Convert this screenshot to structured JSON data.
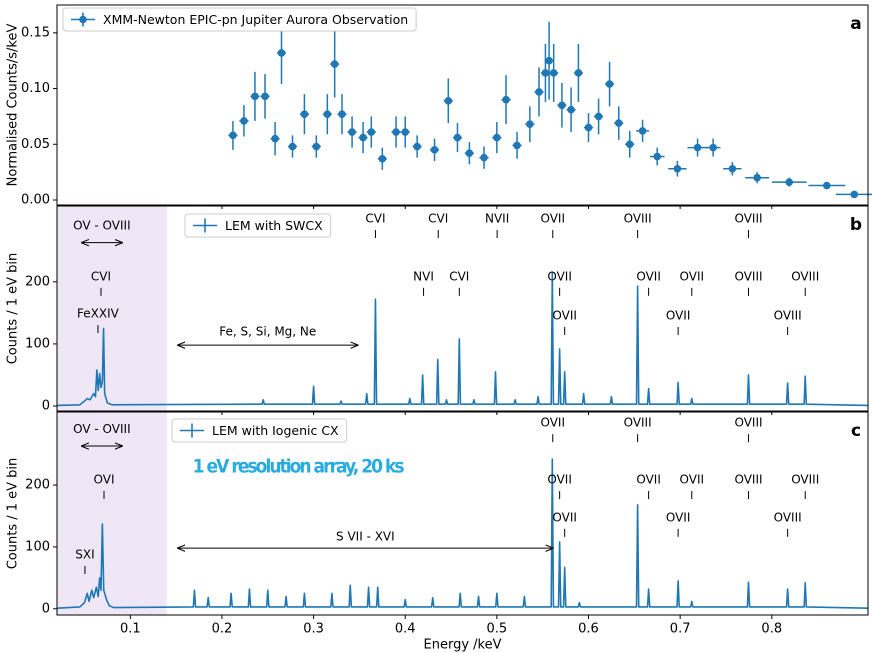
{
  "chart_data": [
    {
      "type": "scatter",
      "label": "a",
      "ylabel": "Normalised Counts/s/keV",
      "xlim": [
        0.02,
        0.905
      ],
      "xticks": [
        0.1,
        0.2,
        0.3,
        0.4,
        0.5,
        0.6,
        0.7,
        0.8
      ],
      "ylim": [
        -0.0045,
        0.175
      ],
      "yticks": [
        {
          "value": 0,
          "label": "0.00"
        },
        0.05,
        {
          "value": 0.1,
          "label": "0.10"
        },
        0.15
      ],
      "x": [
        0.212,
        0.224,
        0.236,
        0.247,
        0.258,
        0.265,
        0.277,
        0.29,
        0.303,
        0.315,
        0.323,
        0.331,
        0.342,
        0.354,
        0.363,
        0.375,
        0.39,
        0.4,
        0.413,
        0.432,
        0.447,
        0.457,
        0.47,
        0.486,
        0.5,
        0.51,
        0.522,
        0.536,
        0.546,
        0.553,
        0.557,
        0.562,
        0.571,
        0.581,
        0.589,
        0.6,
        0.611,
        0.623,
        0.633,
        0.645,
        0.659,
        0.675,
        0.697,
        0.719,
        0.736,
        0.757,
        0.784,
        0.819,
        0.86,
        0.89
      ],
      "series": [
        {
          "name": "XMM-Newton EPIC-pn Jupiter Aurora Observation",
          "color": "#1f77b4",
          "values": [
            0.058,
            0.071,
            0.093,
            0.093,
            0.055,
            0.132,
            0.048,
            0.077,
            0.048,
            0.077,
            0.122,
            0.077,
            0.061,
            0.056,
            0.061,
            0.037,
            0.061,
            0.061,
            0.048,
            0.045,
            0.089,
            0.056,
            0.042,
            0.038,
            0.056,
            0.09,
            0.049,
            0.068,
            0.097,
            0.114,
            0.125,
            0.114,
            0.085,
            0.081,
            0.114,
            0.065,
            0.075,
            0.104,
            0.069,
            0.05,
            0.062,
            0.039,
            0.028,
            0.047,
            0.047,
            0.028,
            0.02,
            0.016,
            0.013,
            0.005
          ],
          "yerr": [
            0.013,
            0.014,
            0.022,
            0.02,
            0.015,
            0.028,
            0.01,
            0.018,
            0.01,
            0.018,
            0.03,
            0.018,
            0.014,
            0.014,
            0.014,
            0.01,
            0.014,
            0.014,
            0.01,
            0.01,
            0.02,
            0.013,
            0.01,
            0.01,
            0.014,
            0.022,
            0.012,
            0.016,
            0.022,
            0.026,
            0.035,
            0.026,
            0.02,
            0.02,
            0.026,
            0.013,
            0.016,
            0.02,
            0.015,
            0.012,
            0.01,
            0.008,
            0.007,
            0.008,
            0.008,
            0.006,
            0.005,
            0.004,
            0.003,
            0
          ],
          "xerr": [
            0.005,
            0.005,
            0.005,
            0.005,
            0.005,
            0.005,
            0.005,
            0.005,
            0.005,
            0.005,
            0.005,
            0.005,
            0.005,
            0.005,
            0.005,
            0.005,
            0.005,
            0.005,
            0.005,
            0.005,
            0.005,
            0.005,
            0.005,
            0.005,
            0.005,
            0.005,
            0.005,
            0.005,
            0.005,
            0.005,
            0.005,
            0.005,
            0.005,
            0.005,
            0.005,
            0.005,
            0.005,
            0.005,
            0.005,
            0.005,
            0.007,
            0.008,
            0.01,
            0.011,
            0.008,
            0.01,
            0.013,
            0.019,
            0.02,
            0.02
          ]
        }
      ]
    },
    {
      "type": "line",
      "label": "b",
      "ylabel": "Counts / 1 eV bin",
      "xlim": [
        0.02,
        0.905
      ],
      "xticks": [
        0.1,
        0.2,
        0.3,
        0.4,
        0.5,
        0.6,
        0.7,
        0.8
      ],
      "ylim": [
        -8,
        322
      ],
      "yticks": [
        0,
        100,
        200
      ],
      "shade": [
        0.02,
        0.14
      ],
      "x": [
        0.02,
        0.045,
        0.05,
        0.053,
        0.056,
        0.06,
        0.062,
        0.0635,
        0.065,
        0.0665,
        0.068,
        0.0695,
        0.0708,
        0.072,
        0.075,
        0.08,
        0.2438,
        0.245,
        0.2462,
        0.2988,
        0.3,
        0.3012,
        0.3288,
        0.33,
        0.3312,
        0.3568,
        0.358,
        0.3592,
        0.3663,
        0.3675,
        0.3687,
        0.4038,
        0.405,
        0.4062,
        0.4178,
        0.419,
        0.4202,
        0.4343,
        0.4355,
        0.4367,
        0.4438,
        0.445,
        0.4462,
        0.4578,
        0.459,
        0.4602,
        0.4738,
        0.475,
        0.4762,
        0.4973,
        0.4985,
        0.4997,
        0.5188,
        0.52,
        0.5212,
        0.5438,
        0.545,
        0.5462,
        0.5593,
        0.5605,
        0.5617,
        0.5673,
        0.5685,
        0.5697,
        0.5728,
        0.574,
        0.5752,
        0.5935,
        0.5947,
        0.5959,
        0.6238,
        0.625,
        0.6262,
        0.6524,
        0.6536,
        0.6548,
        0.6644,
        0.6656,
        0.6668,
        0.6966,
        0.6978,
        0.699,
        0.7115,
        0.7127,
        0.7139,
        0.7734,
        0.7746,
        0.7758,
        0.8161,
        0.8173,
        0.8185,
        0.8353,
        0.8365,
        0.8377,
        0.905
      ],
      "series": [
        {
          "name": "LEM with SWCX",
          "color": "#1f77b4",
          "values": [
            1,
            2,
            8,
            12,
            10,
            20,
            15,
            58,
            25,
            52,
            30,
            40,
            125,
            20,
            5,
            2,
            3,
            10,
            3,
            3,
            32,
            3,
            3,
            8,
            3,
            3,
            20,
            3,
            3,
            172,
            3,
            3,
            12,
            3,
            3,
            50,
            3,
            3,
            75,
            3,
            3,
            10,
            3,
            3,
            108,
            3,
            3,
            10,
            3,
            3,
            55,
            3,
            3,
            10,
            3,
            3,
            15,
            3,
            3,
            215,
            3,
            3,
            92,
            3,
            3,
            55,
            3,
            3,
            20,
            3,
            3,
            15,
            3,
            3,
            193,
            3,
            3,
            28,
            3,
            3,
            38,
            3,
            3,
            12,
            3,
            3,
            50,
            3,
            3,
            37,
            3,
            3,
            48,
            3,
            1
          ]
        }
      ],
      "line_labels": [
        {
          "text": "CVI",
          "x": 0.3675,
          "y": 301
        },
        {
          "text": "CVI",
          "x": 0.436,
          "y": 301
        },
        {
          "text": "NVII",
          "x": 0.5003,
          "y": 301
        },
        {
          "text": "OVII",
          "x": 0.561,
          "y": 301
        },
        {
          "text": "OVIII",
          "x": 0.6536,
          "y": 301
        },
        {
          "text": "OVIII",
          "x": 0.7746,
          "y": 301
        },
        {
          "text": "NVI",
          "x": 0.42,
          "y": 208
        },
        {
          "text": "CVI",
          "x": 0.459,
          "y": 208
        },
        {
          "text": "OVII",
          "x": 0.5685,
          "y": 208
        },
        {
          "text": "OVII",
          "x": 0.6656,
          "y": 208
        },
        {
          "text": "OVII",
          "x": 0.7127,
          "y": 208
        },
        {
          "text": "OVIII",
          "x": 0.7746,
          "y": 208
        },
        {
          "text": "OVIII",
          "x": 0.8365,
          "y": 208
        },
        {
          "text": "OVII",
          "x": 0.574,
          "y": 145
        },
        {
          "text": "OVII",
          "x": 0.6978,
          "y": 145
        },
        {
          "text": "OVIII",
          "x": 0.8173,
          "y": 145
        },
        {
          "text": "CVI",
          "x": 0.068,
          "y": 208
        },
        {
          "text": "FeXXIV",
          "x": 0.0647,
          "y": 148
        }
      ],
      "arrows": [
        {
          "text": "OV - OVIII",
          "x1": 0.047,
          "x2": 0.091,
          "y": 263,
          "text_y": 290
        },
        {
          "text": "Fe, S, Si, Mg, Ne",
          "x1": 0.152,
          "x2": 0.348,
          "y": 98,
          "text_y": 119
        }
      ]
    },
    {
      "type": "line",
      "label": "c",
      "ylabel": "Counts / 1 eV bin",
      "xlabel": "Energy /keV",
      "xlim": [
        0.02,
        0.905
      ],
      "xticks": [
        0.1,
        0.2,
        0.3,
        0.4,
        0.5,
        0.6,
        0.7,
        0.8
      ],
      "ylim": [
        -10,
        318
      ],
      "yticks": [
        0,
        100,
        200
      ],
      "shade": [
        0.02,
        0.14
      ],
      "x": [
        0.02,
        0.045,
        0.05,
        0.053,
        0.055,
        0.058,
        0.06,
        0.063,
        0.065,
        0.0665,
        0.068,
        0.0695,
        0.071,
        0.074,
        0.077,
        0.082,
        0.1688,
        0.17,
        0.1712,
        0.1838,
        0.185,
        0.1862,
        0.2088,
        0.21,
        0.2112,
        0.2288,
        0.23,
        0.2312,
        0.2488,
        0.25,
        0.2512,
        0.2688,
        0.27,
        0.2712,
        0.2888,
        0.29,
        0.2912,
        0.3188,
        0.32,
        0.3212,
        0.3388,
        0.34,
        0.3412,
        0.3588,
        0.36,
        0.3612,
        0.3688,
        0.37,
        0.3712,
        0.3988,
        0.4,
        0.4012,
        0.4288,
        0.43,
        0.4312,
        0.4588,
        0.46,
        0.4612,
        0.4788,
        0.48,
        0.4812,
        0.4988,
        0.5,
        0.5012,
        0.5288,
        0.53,
        0.5312,
        0.5593,
        0.5605,
        0.5617,
        0.5673,
        0.5685,
        0.5697,
        0.5728,
        0.574,
        0.5752,
        0.5888,
        0.59,
        0.5912,
        0.6524,
        0.6536,
        0.6548,
        0.6644,
        0.6656,
        0.6668,
        0.6966,
        0.6978,
        0.699,
        0.7115,
        0.7127,
        0.7139,
        0.7734,
        0.7746,
        0.7758,
        0.8161,
        0.8173,
        0.8185,
        0.8353,
        0.8365,
        0.8377,
        0.905
      ],
      "series": [
        {
          "name": "LEM with Iogenic CX",
          "color": "#1f77b4",
          "values": [
            1,
            3,
            10,
            25,
            12,
            30,
            18,
            35,
            20,
            50,
            30,
            137,
            30,
            15,
            5,
            2,
            3,
            30,
            3,
            3,
            18,
            3,
            3,
            25,
            3,
            3,
            32,
            3,
            3,
            30,
            3,
            3,
            20,
            3,
            3,
            25,
            3,
            3,
            25,
            3,
            3,
            38,
            3,
            3,
            35,
            3,
            3,
            35,
            3,
            3,
            15,
            3,
            3,
            18,
            3,
            3,
            25,
            3,
            3,
            20,
            3,
            3,
            25,
            3,
            3,
            20,
            3,
            3,
            242,
            3,
            3,
            108,
            3,
            3,
            67,
            3,
            3,
            10,
            3,
            3,
            168,
            3,
            3,
            32,
            3,
            3,
            45,
            3,
            3,
            12,
            3,
            3,
            43,
            3,
            3,
            32,
            3,
            3,
            42,
            3,
            1
          ]
        }
      ],
      "line_labels": [
        {
          "text": "OVII",
          "x": 0.561,
          "y": 300
        },
        {
          "text": "OVIII",
          "x": 0.6536,
          "y": 300
        },
        {
          "text": "OVIII",
          "x": 0.7746,
          "y": 300
        },
        {
          "text": "OVII",
          "x": 0.5685,
          "y": 208
        },
        {
          "text": "OVII",
          "x": 0.6656,
          "y": 208
        },
        {
          "text": "OVII",
          "x": 0.7127,
          "y": 208
        },
        {
          "text": "OVIII",
          "x": 0.7746,
          "y": 208
        },
        {
          "text": "OVIII",
          "x": 0.8365,
          "y": 208
        },
        {
          "text": "OVII",
          "x": 0.574,
          "y": 147
        },
        {
          "text": "OVII",
          "x": 0.6978,
          "y": 147
        },
        {
          "text": "OVIII",
          "x": 0.8173,
          "y": 147
        },
        {
          "text": "OVI",
          "x": 0.0713,
          "y": 208
        },
        {
          "text": "SXI",
          "x": 0.0505,
          "y": 87
        }
      ],
      "arrows": [
        {
          "text": "OV - OVIII",
          "x1": 0.047,
          "x2": 0.091,
          "y": 263,
          "text_y": 290
        },
        {
          "text": "S VII - XVI",
          "x1": 0.152,
          "x2": 0.561,
          "y": 98,
          "text_y": 116
        }
      ],
      "note": {
        "text": "1 eV resolution array, 20 ks",
        "x": 0.168,
        "y": 229
      }
    }
  ]
}
